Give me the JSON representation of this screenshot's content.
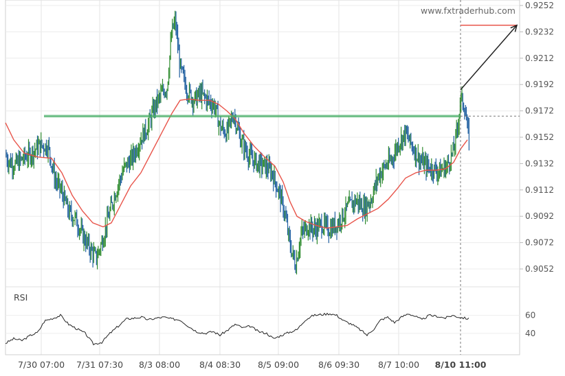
{
  "watermark": "www.fxtraderhub.com",
  "chart_data": [
    {
      "type": "candlestick",
      "title": "",
      "ylim": [
        0.9042,
        0.9252
      ],
      "y_ticks": [
        "0.9252",
        "0.9232",
        "0.9212",
        "0.9192",
        "0.9172",
        "0.9152",
        "0.9132",
        "0.9112",
        "0.9092",
        "0.9072",
        "0.9052"
      ],
      "x_ticks": [
        "7/30 07:00",
        "7/31 07:30",
        "8/3 08:00",
        "8/4 08:30",
        "8/5 09:00",
        "8/6 09:30",
        "8/7 10:00",
        "8/10 11:00"
      ],
      "grid": true,
      "series": [
        {
          "kind": "price",
          "colors": {
            "up": "#2e8b2e",
            "down": "#1f5fa0"
          },
          "path": [
            [
              0,
              0.9148
            ],
            [
              12,
              0.9134
            ],
            [
              22,
              0.9131
            ],
            [
              34,
              0.9136
            ],
            [
              46,
              0.914
            ],
            [
              58,
              0.9146
            ],
            [
              70,
              0.9145
            ],
            [
              80,
              0.912
            ],
            [
              90,
              0.911
            ],
            [
              100,
              0.9095
            ],
            [
              110,
              0.909
            ],
            [
              120,
              0.9078
            ],
            [
              130,
              0.9068
            ],
            [
              140,
              0.906
            ],
            [
              148,
              0.9072
            ],
            [
              158,
              0.9092
            ],
            [
              168,
              0.911
            ],
            [
              180,
              0.9128
            ],
            [
              192,
              0.9136
            ],
            [
              204,
              0.915
            ],
            [
              215,
              0.916
            ],
            [
              225,
              0.9175
            ],
            [
              235,
              0.9185
            ],
            [
              243,
              0.919
            ],
            [
              250,
              0.9232
            ],
            [
              255,
              0.924
            ],
            [
              262,
              0.9205
            ],
            [
              272,
              0.9188
            ],
            [
              282,
              0.918
            ],
            [
              292,
              0.9185
            ],
            [
              302,
              0.918
            ],
            [
              312,
              0.9176
            ],
            [
              320,
              0.916
            ],
            [
              330,
              0.9155
            ],
            [
              340,
              0.917
            ],
            [
              350,
              0.915
            ],
            [
              362,
              0.9138
            ],
            [
              374,
              0.9132
            ],
            [
              386,
              0.913
            ],
            [
              396,
              0.9125
            ],
            [
              406,
              0.911
            ],
            [
              414,
              0.9095
            ],
            [
              422,
              0.907
            ],
            [
              430,
              0.9055
            ],
            [
              438,
              0.9078
            ],
            [
              448,
              0.9085
            ],
            [
              458,
              0.9082
            ],
            [
              468,
              0.9086
            ],
            [
              478,
              0.9082
            ],
            [
              488,
              0.9085
            ],
            [
              498,
              0.9092
            ],
            [
              508,
              0.91
            ],
            [
              518,
              0.9104
            ],
            [
              530,
              0.9098
            ],
            [
              540,
              0.9105
            ],
            [
              550,
              0.9122
            ],
            [
              560,
              0.913
            ],
            [
              570,
              0.9135
            ],
            [
              580,
              0.9148
            ],
            [
              590,
              0.9155
            ],
            [
              600,
              0.9145
            ],
            [
              610,
              0.9135
            ],
            [
              620,
              0.913
            ],
            [
              630,
              0.9128
            ],
            [
              640,
              0.9126
            ],
            [
              650,
              0.913
            ],
            [
              660,
              0.9142
            ],
            [
              666,
              0.916
            ],
            [
              670,
              0.9182
            ],
            [
              676,
              0.9175
            ],
            [
              680,
              0.9158
            ],
            [
              683,
              0.9148
            ]
          ]
        },
        {
          "kind": "moving_average",
          "color": "#e8544a",
          "path": [
            [
              8,
              0.9163
            ],
            [
              20,
              0.915
            ],
            [
              35,
              0.914
            ],
            [
              55,
              0.9137
            ],
            [
              75,
              0.9136
            ],
            [
              90,
              0.9125
            ],
            [
              105,
              0.9108
            ],
            [
              120,
              0.9096
            ],
            [
              135,
              0.9087
            ],
            [
              150,
              0.9084
            ],
            [
              162,
              0.9087
            ],
            [
              175,
              0.91
            ],
            [
              190,
              0.9115
            ],
            [
              205,
              0.9125
            ],
            [
              220,
              0.914
            ],
            [
              235,
              0.9155
            ],
            [
              250,
              0.917
            ],
            [
              262,
              0.918
            ],
            [
              275,
              0.9181
            ],
            [
              290,
              0.918
            ],
            [
              305,
              0.918
            ],
            [
              318,
              0.9177
            ],
            [
              330,
              0.9172
            ],
            [
              342,
              0.9166
            ],
            [
              355,
              0.9155
            ],
            [
              370,
              0.9145
            ],
            [
              385,
              0.9137
            ],
            [
              400,
              0.913
            ],
            [
              412,
              0.9118
            ],
            [
              422,
              0.9103
            ],
            [
              432,
              0.9092
            ],
            [
              445,
              0.9088
            ],
            [
              460,
              0.9085
            ],
            [
              475,
              0.9083
            ],
            [
              490,
              0.9084
            ],
            [
              505,
              0.9085
            ],
            [
              520,
              0.909
            ],
            [
              535,
              0.9094
            ],
            [
              550,
              0.9098
            ],
            [
              565,
              0.9105
            ],
            [
              578,
              0.9113
            ],
            [
              590,
              0.9121
            ],
            [
              605,
              0.9125
            ],
            [
              620,
              0.9127
            ],
            [
              635,
              0.9127
            ],
            [
              648,
              0.9128
            ],
            [
              660,
              0.9133
            ],
            [
              670,
              0.9143
            ],
            [
              680,
              0.915
            ]
          ]
        }
      ],
      "annotations": {
        "resistance_level": {
          "y": 0.9168,
          "color": "#4caf6a"
        },
        "current_level_dashed": {
          "y": 0.9168
        },
        "target_level": {
          "y": 0.9237,
          "color": "#e8544a"
        },
        "arrow": {
          "from": [
            670,
            0.9188
          ],
          "to": [
            752,
            0.9237
          ]
        }
      }
    },
    {
      "type": "line",
      "title": "RSI",
      "ylim": [
        28,
        70
      ],
      "y_ticks": [
        "60",
        "40"
      ],
      "series": [
        {
          "name": "RSI",
          "color": "#222222",
          "path": [
            [
              8,
              29
            ],
            [
              20,
              34
            ],
            [
              32,
              32
            ],
            [
              45,
              38
            ],
            [
              55,
              41
            ],
            [
              65,
              54
            ],
            [
              78,
              57
            ],
            [
              88,
              60
            ],
            [
              100,
              50
            ],
            [
              112,
              45
            ],
            [
              124,
              40
            ],
            [
              136,
              28
            ],
            [
              148,
              30
            ],
            [
              160,
              40
            ],
            [
              172,
              48
            ],
            [
              184,
              56
            ],
            [
              196,
              57
            ],
            [
              206,
              58
            ],
            [
              216,
              55
            ],
            [
              228,
              57
            ],
            [
              238,
              58
            ],
            [
              250,
              56
            ],
            [
              262,
              55
            ],
            [
              274,
              48
            ],
            [
              286,
              42
            ],
            [
              298,
              40
            ],
            [
              310,
              42
            ],
            [
              320,
              38
            ],
            [
              332,
              44
            ],
            [
              342,
              50
            ],
            [
              354,
              46
            ],
            [
              364,
              48
            ],
            [
              376,
              42
            ],
            [
              388,
              40
            ],
            [
              398,
              34
            ],
            [
              410,
              38
            ],
            [
              420,
              41
            ],
            [
              432,
              44
            ],
            [
              444,
              55
            ],
            [
              456,
              60
            ],
            [
              468,
              61
            ],
            [
              480,
              62
            ],
            [
              490,
              60
            ],
            [
              500,
              54
            ],
            [
              512,
              50
            ],
            [
              524,
              44
            ],
            [
              534,
              38
            ],
            [
              544,
              45
            ],
            [
              554,
              55
            ],
            [
              564,
              58
            ],
            [
              574,
              52
            ],
            [
              584,
              58
            ],
            [
              594,
              62
            ],
            [
              604,
              59
            ],
            [
              614,
              55
            ],
            [
              624,
              60
            ],
            [
              636,
              59
            ],
            [
              648,
              57
            ],
            [
              658,
              60
            ],
            [
              668,
              58
            ],
            [
              676,
              57
            ],
            [
              683,
              56
            ]
          ]
        }
      ]
    }
  ]
}
